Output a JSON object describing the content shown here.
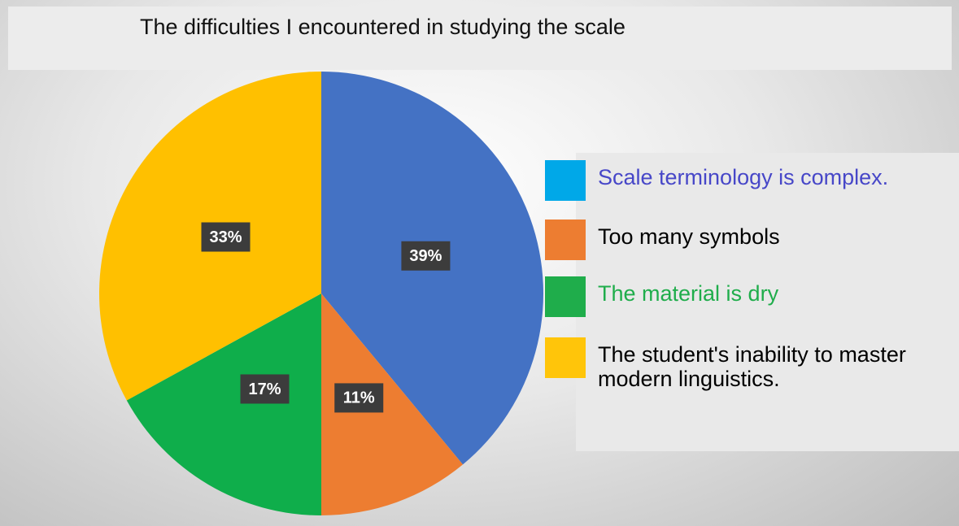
{
  "chart_data": {
    "type": "pie",
    "title": "The difficulties I encountered in studying the scale",
    "categories": [
      "Scale terminology is complex.",
      "Too many symbols",
      "The material is dry",
      "The student's inability to master modern linguistics."
    ],
    "values": [
      39,
      11,
      17,
      33
    ],
    "value_labels": [
      "39%",
      "11%",
      "17%",
      "33%"
    ],
    "colors": [
      "#4472c4",
      "#ed7d31",
      "#0fae4b",
      "#ffc000"
    ],
    "legend_colors": [
      "#00a8e8",
      "#ed7d31",
      "#1fad4b",
      "#ffc50a"
    ],
    "legend_text_colors": [
      "#4747c8",
      "#000000",
      "#1fad4b",
      "#000000"
    ],
    "legend": "right"
  }
}
